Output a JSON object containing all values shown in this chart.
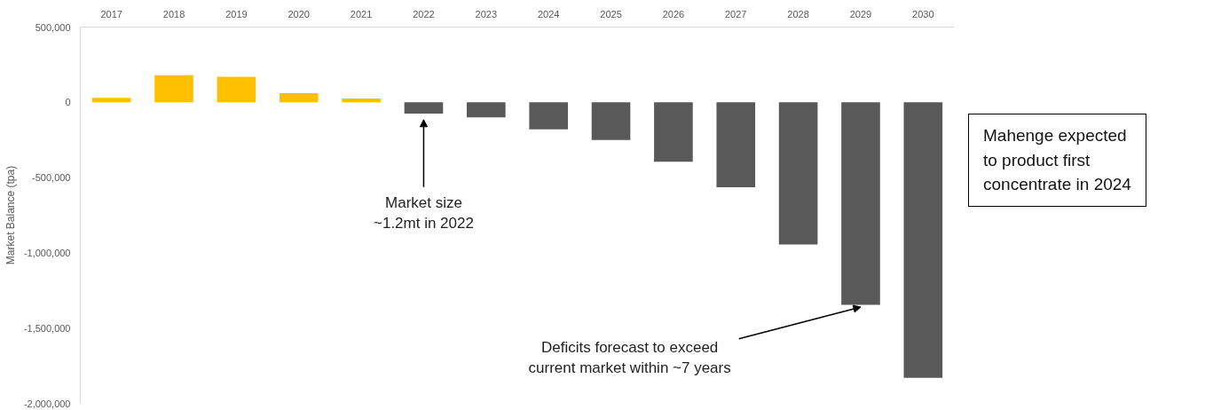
{
  "chart_data": {
    "type": "bar",
    "ylabel": "Market Balance (tpa)",
    "categories": [
      "2017",
      "2018",
      "2019",
      "2020",
      "2021",
      "2022",
      "2023",
      "2024",
      "2025",
      "2026",
      "2027",
      "2028",
      "2029",
      "2030"
    ],
    "values": [
      30000,
      180000,
      170000,
      60000,
      25000,
      -75000,
      -100000,
      -180000,
      -250000,
      -395000,
      -565000,
      -945000,
      -1345000,
      -1830000
    ],
    "colors": [
      "#ffc000",
      "#ffc000",
      "#ffc000",
      "#ffc000",
      "#ffc000",
      "#595959",
      "#595959",
      "#595959",
      "#595959",
      "#595959",
      "#595959",
      "#595959",
      "#595959",
      "#595959"
    ],
    "ylim": [
      -2000000,
      500000
    ],
    "yticks": [
      {
        "value": 500000,
        "label": "500,000"
      },
      {
        "value": 0,
        "label": "0"
      },
      {
        "value": -500000,
        "label": "-500,000"
      },
      {
        "value": -1000000,
        "label": "-1,000,000"
      },
      {
        "value": -1500000,
        "label": "-1,500,000"
      },
      {
        "value": -2000000,
        "label": "-2,000,000"
      }
    ],
    "grid": false,
    "annotations": [
      {
        "text": "Market size\n~1.2mt in 2022",
        "x": "2022",
        "y": -75000
      },
      {
        "text": "Deficits forecast to exceed\ncurrent market within ~7 years",
        "x": "2029",
        "y": -1345000
      },
      "Mahenge expected\nto product first\nconcentrate in 2024"
    ]
  }
}
